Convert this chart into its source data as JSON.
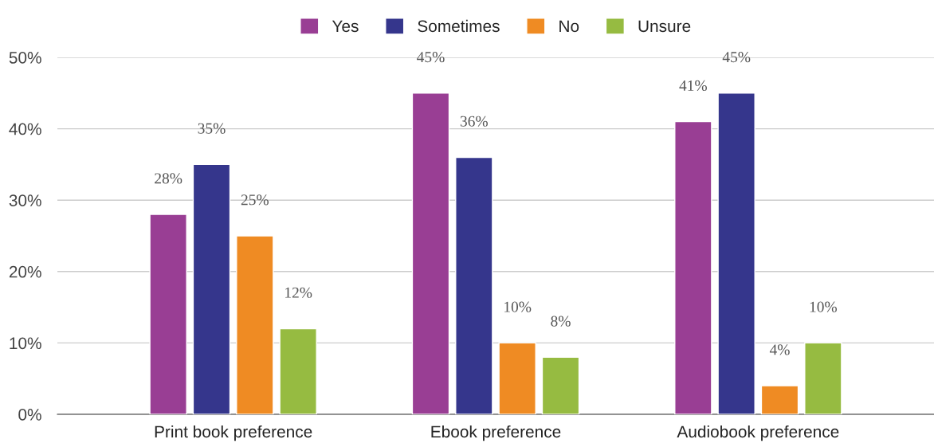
{
  "chart_data": {
    "type": "bar",
    "categories": [
      "Print book preference",
      "Ebook preference",
      "Audiobook preference"
    ],
    "series": [
      {
        "name": "Yes",
        "color": "#993e94",
        "values": [
          28,
          45,
          41
        ],
        "value_labels": [
          "28%",
          "45%",
          "41%"
        ]
      },
      {
        "name": "Sometimes",
        "color": "#35368c",
        "values": [
          35,
          36,
          45
        ],
        "value_labels": [
          "35%",
          "36%",
          "45%"
        ]
      },
      {
        "name": "No",
        "color": "#ef8b23",
        "values": [
          25,
          10,
          4
        ],
        "value_labels": [
          "25%",
          "10%",
          "4%"
        ]
      },
      {
        "name": "Unsure",
        "color": "#96bb41",
        "values": [
          12,
          8,
          10
        ],
        "value_labels": [
          "12%",
          "8%",
          "10%"
        ]
      }
    ],
    "ylim": [
      0,
      50
    ],
    "yticks": [
      {
        "value": 0,
        "label": "0%"
      },
      {
        "value": 10,
        "label": "10%"
      },
      {
        "value": 20,
        "label": "20%"
      },
      {
        "value": 30,
        "label": "30%"
      },
      {
        "value": 40,
        "label": "40%"
      },
      {
        "value": 50,
        "label": "50%"
      }
    ],
    "grid": "y",
    "legend": "top"
  }
}
